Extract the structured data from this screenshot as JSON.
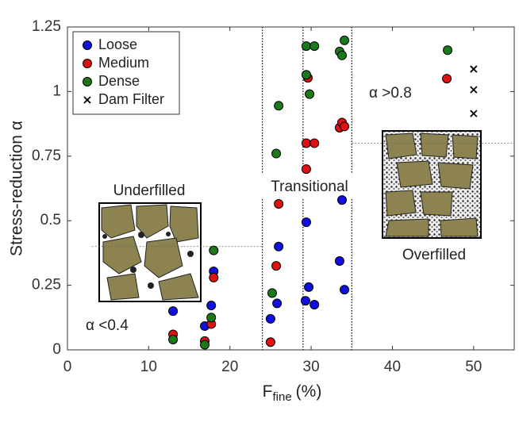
{
  "chart_data": {
    "type": "scatter",
    "y_label": "Stress-reduction α",
    "x_label": {
      "text": "F",
      "subscript": "fine",
      "suffix": "(%)"
    },
    "xlim": [
      0,
      55
    ],
    "xticks": [
      0,
      10,
      20,
      30,
      40,
      50
    ],
    "ylim": [
      0,
      1.25
    ],
    "yticks": [
      0,
      0.25,
      0.5,
      0.75,
      1,
      1.25
    ],
    "grid": false,
    "legend": "top-left",
    "boundaries": {
      "x": [
        24,
        29,
        35
      ],
      "lower": {
        "y": 0.4,
        "from": 3,
        "to": 24
      },
      "upper": {
        "y": 0.8,
        "from": 35,
        "to": 55
      }
    },
    "annotations": [
      "Underfilled",
      "Transitional",
      "Overfilled",
      "α <0.4",
      "α >0.8"
    ],
    "series": [
      {
        "name": "Loose",
        "color": "#1010e0",
        "marker": "circle",
        "x": [
          13,
          16.9,
          17.7,
          18,
          25,
          25.8,
          26,
          29.4,
          29.7,
          29.3,
          30.4,
          33.5,
          34.1,
          33.8
        ],
        "values": [
          0.15,
          0.092,
          0.172,
          0.304,
          0.12,
          0.18,
          0.4,
          0.494,
          0.243,
          0.19,
          0.175,
          0.344,
          0.233,
          0.58
        ]
      },
      {
        "name": "Medium",
        "color": "#e01010",
        "marker": "circle",
        "x": [
          13,
          16.9,
          17.7,
          18,
          25,
          25.7,
          26,
          29.4,
          29.4,
          30.4,
          29.6,
          33.5,
          33.8,
          34.1,
          46.7
        ],
        "values": [
          0.06,
          0.034,
          0.1,
          0.28,
          0.03,
          0.325,
          0.565,
          0.7,
          0.8,
          0.8,
          1.053,
          0.86,
          0.88,
          0.865,
          1.05
        ]
      },
      {
        "name": "Dense",
        "color": "#1a7a1a",
        "marker": "circle",
        "x": [
          13,
          16.9,
          17.7,
          18,
          25.2,
          25.7,
          26,
          29.4,
          29.4,
          30.4,
          29.8,
          33.5,
          33.8,
          34.1,
          46.8
        ],
        "values": [
          0.04,
          0.02,
          0.125,
          0.385,
          0.22,
          0.76,
          0.945,
          1.065,
          1.176,
          1.176,
          0.99,
          1.155,
          1.14,
          1.198,
          1.16
        ]
      },
      {
        "name": "Dam Filter",
        "color": "#000000",
        "marker": "x",
        "x": [
          50,
          50,
          50
        ],
        "values": [
          1.087,
          1.007,
          0.915
        ]
      }
    ]
  }
}
